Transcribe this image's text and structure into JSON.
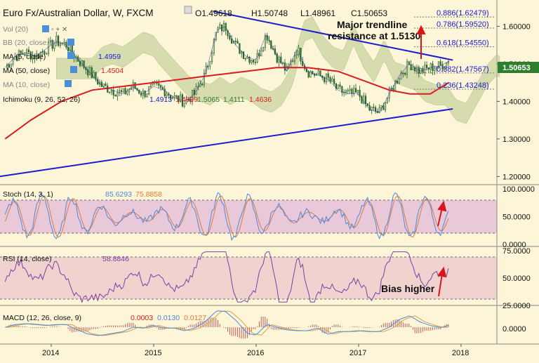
{
  "header": {
    "title": "Euro Fx/Australian Dollar, W, FXCM",
    "open": "O1.49618",
    "high": "H1.50748",
    "low": "L1.48961",
    "close": "C1.50653"
  },
  "legend": {
    "vol": "Vol (20)",
    "bb": "BB (20, close, 2)",
    "ma5": "MA (5, close)",
    "ma5_val": "1.4959",
    "ma50": "MA (50, close)",
    "ma50_val": "1.4504",
    "ma_close": "MA (10, close)",
    "ichimoku": "Ichimoku (9, 26, 52, 26)",
    "ichi_vals": [
      "1.4913",
      "1.4999",
      "1.5065",
      "1.4111",
      "1.4636"
    ]
  },
  "annotations": {
    "resistance_line1": "Major trendline",
    "resistance_line2": "resistance at 1.5130",
    "bias": "Bias higher"
  },
  "fib_levels": [
    {
      "label": "0.886(1.62479)",
      "value": 1.62479
    },
    {
      "label": "0.786(1.59520)",
      "value": 1.5952
    },
    {
      "label": "0.618(1.54550)",
      "value": 1.5455
    },
    {
      "label": "0.382(1.47567)",
      "value": 1.47567
    },
    {
      "label": "0.236(1.43248)",
      "value": 1.43248
    }
  ],
  "price_tag": "1.50653",
  "price_axis": [
    {
      "label": "1.60000",
      "value": 1.6
    },
    {
      "label": "1.50000",
      "value": 1.5
    },
    {
      "label": "1.40000",
      "value": 1.4
    },
    {
      "label": "1.30000",
      "value": 1.3
    },
    {
      "label": "1.20000",
      "value": 1.2
    }
  ],
  "stoch": {
    "name": "Stoch (14, 3, 1)",
    "k_val": "85.6293",
    "d_val": "75.8858",
    "axis": [
      {
        "label": "100.0000",
        "value": 100
      },
      {
        "label": "50.0000",
        "value": 50
      },
      {
        "label": "0.0000",
        "value": 0
      }
    ]
  },
  "rsi": {
    "name": "RSI (14, close)",
    "val": "58.8846",
    "axis": [
      {
        "label": "75.0000",
        "value": 75
      },
      {
        "label": "50.0000",
        "value": 50
      },
      {
        "label": "25.0000",
        "value": 25
      }
    ]
  },
  "macd": {
    "name": "MACD (12, 26, close, 9)",
    "vals": [
      "0.0003",
      "0.0130",
      "0.0127"
    ],
    "axis": [
      {
        "label": "0.0000",
        "value": 0
      }
    ]
  },
  "time_axis": [
    {
      "label": "2014",
      "value": 2014.0
    },
    {
      "label": "2015",
      "value": 2015.0
    },
    {
      "label": "2016",
      "value": 2016.0
    },
    {
      "label": "2017",
      "value": 2017.0
    },
    {
      "label": "2018",
      "value": 2018.0
    }
  ],
  "colors": {
    "up": "#2f7d2f",
    "down": "#2f7d2f",
    "ma50": "#d91c1c",
    "trendline": "#1c1ccf",
    "cloud": "#b7c98c",
    "cloud_red": "#e8b9b0",
    "stoch_k": "#4a89dc",
    "stoch_d": "#e07a3c",
    "rsi": "#7a3fa8",
    "macd": "#4a89dc",
    "signal": "#e0a040",
    "hist": "#c06060",
    "arrow": "#d81818"
  },
  "chart_data": {
    "type": "candlestick",
    "x_range": [
      2013.5,
      2018.35
    ],
    "y_range": [
      1.18,
      1.67
    ],
    "anchors": [
      [
        2013.55,
        1.49
      ],
      [
        2013.65,
        1.52
      ],
      [
        2013.75,
        1.53
      ],
      [
        2013.85,
        1.52
      ],
      [
        2013.95,
        1.54
      ],
      [
        2014.05,
        1.56
      ],
      [
        2014.15,
        1.55
      ],
      [
        2014.2,
        1.53
      ],
      [
        2014.3,
        1.5
      ],
      [
        2014.4,
        1.47
      ],
      [
        2014.5,
        1.44
      ],
      [
        2014.6,
        1.43
      ],
      [
        2014.7,
        1.42
      ],
      [
        2014.8,
        1.44
      ],
      [
        2014.9,
        1.42
      ],
      [
        2015.0,
        1.44
      ],
      [
        2015.1,
        1.43
      ],
      [
        2015.2,
        1.41
      ],
      [
        2015.3,
        1.4
      ],
      [
        2015.4,
        1.42
      ],
      [
        2015.5,
        1.47
      ],
      [
        2015.62,
        1.59
      ],
      [
        2015.7,
        1.6
      ],
      [
        2015.8,
        1.55
      ],
      [
        2015.9,
        1.52
      ],
      [
        2016.0,
        1.51
      ],
      [
        2016.1,
        1.58
      ],
      [
        2016.2,
        1.52
      ],
      [
        2016.3,
        1.48
      ],
      [
        2016.4,
        1.54
      ],
      [
        2016.5,
        1.48
      ],
      [
        2016.6,
        1.47
      ],
      [
        2016.7,
        1.46
      ],
      [
        2016.8,
        1.43
      ],
      [
        2016.9,
        1.42
      ],
      [
        2017.0,
        1.42
      ],
      [
        2017.1,
        1.38
      ],
      [
        2017.2,
        1.37
      ],
      [
        2017.3,
        1.42
      ],
      [
        2017.4,
        1.47
      ],
      [
        2017.5,
        1.5
      ],
      [
        2017.6,
        1.48
      ],
      [
        2017.7,
        1.49
      ],
      [
        2017.8,
        1.495
      ],
      [
        2017.88,
        1.50653
      ]
    ],
    "ma50": [
      [
        2013.55,
        1.3
      ],
      [
        2013.8,
        1.35
      ],
      [
        2014.1,
        1.4
      ],
      [
        2014.4,
        1.43
      ],
      [
        2014.7,
        1.44
      ],
      [
        2015.0,
        1.45
      ],
      [
        2015.3,
        1.46
      ],
      [
        2015.6,
        1.47
      ],
      [
        2015.9,
        1.48
      ],
      [
        2016.2,
        1.49
      ],
      [
        2016.5,
        1.49
      ],
      [
        2016.8,
        1.48
      ],
      [
        2017.1,
        1.45
      ],
      [
        2017.3,
        1.43
      ],
      [
        2017.5,
        1.42
      ],
      [
        2017.7,
        1.42
      ],
      [
        2017.88,
        1.45
      ]
    ],
    "trendline_upper": [
      [
        2015.58,
        1.64
      ],
      [
        2017.92,
        1.51
      ]
    ],
    "trendline_lower": [
      [
        2013.5,
        1.2
      ],
      [
        2017.92,
        1.38
      ]
    ]
  }
}
